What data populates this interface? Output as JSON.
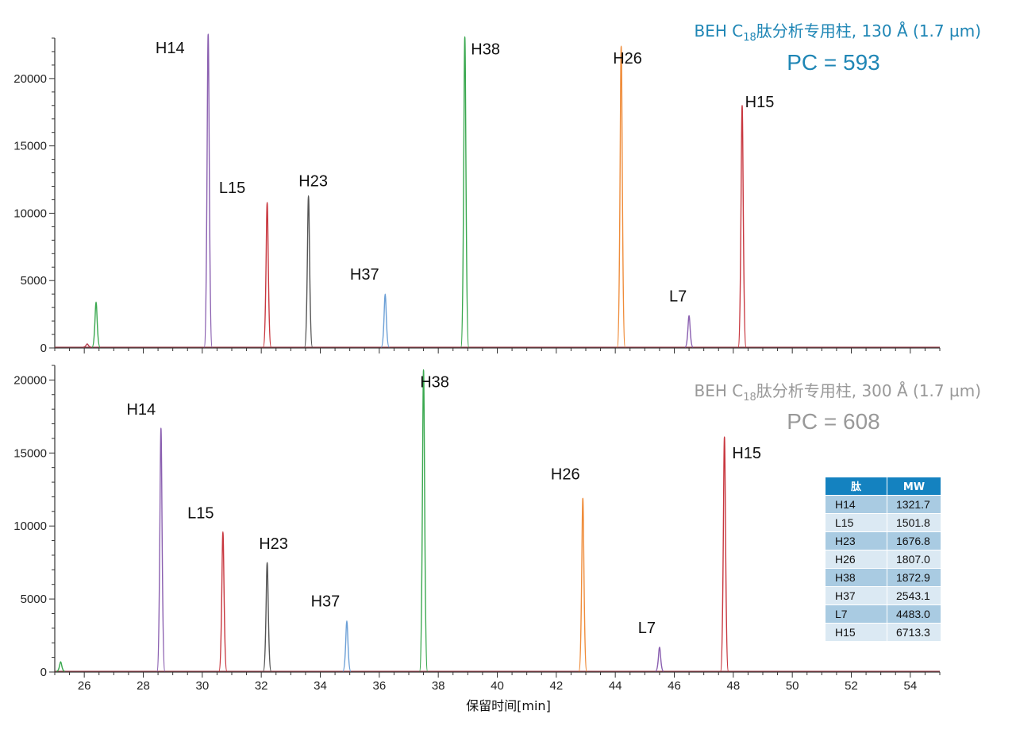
{
  "chart_data": [
    {
      "type": "line",
      "title": "BEH C18肽分析专用柱, 130 Å (1.7 µm)",
      "title_parts": {
        "pre": "BEH C",
        "sub": "18",
        "post": "肽分析专用柱, 130 Å (1.7 µm)"
      },
      "subtitle": "PC = 593",
      "color": "#1f86b5",
      "xlabel": "",
      "ylabel": "",
      "xlim": [
        25,
        55
      ],
      "ylim": [
        0,
        23000
      ],
      "yticks": [
        0,
        5000,
        10000,
        15000,
        20000
      ],
      "grid": false,
      "peaks": [
        {
          "name": "",
          "rt": 26.4,
          "height": 3400,
          "color": "#3aa84f"
        },
        {
          "name": "",
          "rt": 26.1,
          "height": 300,
          "color": "#b03a4a"
        },
        {
          "name": "H14",
          "rt": 30.2,
          "height": 23300,
          "color": "#8a5fb0"
        },
        {
          "name": "L15",
          "rt": 32.2,
          "height": 10800,
          "color": "#c8373f"
        },
        {
          "name": "H23",
          "rt": 33.6,
          "height": 11300,
          "color": "#555555"
        },
        {
          "name": "H37",
          "rt": 36.2,
          "height": 4000,
          "color": "#6b9fd6"
        },
        {
          "name": "H38",
          "rt": 38.9,
          "height": 23100,
          "color": "#3aa84f"
        },
        {
          "name": "H26",
          "rt": 44.2,
          "height": 22400,
          "color": "#ef8c3a"
        },
        {
          "name": "L7",
          "rt": 46.5,
          "height": 2400,
          "color": "#8a5fb0"
        },
        {
          "name": "H15",
          "rt": 48.3,
          "height": 18000,
          "color": "#c8373f"
        }
      ]
    },
    {
      "type": "line",
      "title": "BEH C18肽分析专用柱, 300 Å (1.7 µm)",
      "title_parts": {
        "pre": "BEH C",
        "sub": "18",
        "post": "肽分析专用柱, 300 Å (1.7 µm)"
      },
      "subtitle": "PC = 608",
      "color": "#999999",
      "xlabel": "保留时间[min]",
      "ylabel": "",
      "xlim": [
        25,
        55
      ],
      "ylim": [
        0,
        21000
      ],
      "yticks": [
        0,
        5000,
        10000,
        15000,
        20000
      ],
      "xticks": [
        26,
        28,
        30,
        32,
        34,
        36,
        38,
        40,
        42,
        44,
        46,
        48,
        50,
        52,
        54
      ],
      "grid": false,
      "peaks": [
        {
          "name": "",
          "rt": 25.2,
          "height": 700,
          "color": "#3aa84f"
        },
        {
          "name": "H14",
          "rt": 28.6,
          "height": 16700,
          "color": "#8a5fb0"
        },
        {
          "name": "L15",
          "rt": 30.7,
          "height": 9600,
          "color": "#c8373f"
        },
        {
          "name": "H23",
          "rt": 32.2,
          "height": 7500,
          "color": "#555555"
        },
        {
          "name": "H37",
          "rt": 34.9,
          "height": 3500,
          "color": "#6b9fd6"
        },
        {
          "name": "H38",
          "rt": 37.5,
          "height": 20700,
          "color": "#3aa84f"
        },
        {
          "name": "H26",
          "rt": 42.9,
          "height": 11900,
          "color": "#ef8c3a"
        },
        {
          "name": "L7",
          "rt": 45.5,
          "height": 1700,
          "color": "#8a5fb0"
        },
        {
          "name": "H15",
          "rt": 47.7,
          "height": 16100,
          "color": "#c8373f"
        }
      ]
    }
  ],
  "mw_table": {
    "header_color": "#1482c0",
    "row_dark": "#a9cbe2",
    "row_light": "#dbe9f3",
    "headers": [
      "肽",
      "MW"
    ],
    "rows": [
      [
        "H14",
        "1321.7"
      ],
      [
        "L15",
        "1501.8"
      ],
      [
        "H23",
        "1676.8"
      ],
      [
        "H26",
        "1807.0"
      ],
      [
        "H38",
        "1872.9"
      ],
      [
        "H37",
        "2543.1"
      ],
      [
        "L7",
        "4483.0"
      ],
      [
        "H15",
        "6713.3"
      ]
    ]
  }
}
